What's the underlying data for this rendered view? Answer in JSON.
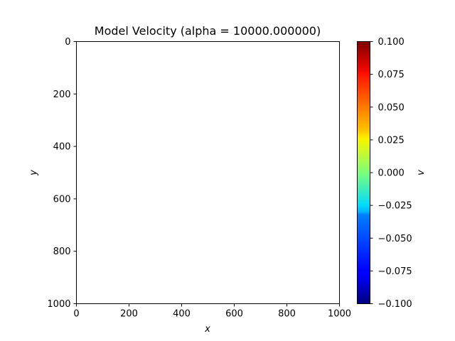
{
  "chart_data": {
    "type": "heatmap",
    "title": "Model Velocity (alpha = 10000.000000)",
    "xlabel": "x",
    "ylabel": "y",
    "xlim": [
      0,
      1000
    ],
    "ylim": [
      1000,
      0
    ],
    "xticks": [
      0,
      200,
      400,
      600,
      800,
      1000
    ],
    "yticks": [
      0,
      200,
      400,
      600,
      800,
      1000
    ],
    "xtick_labels": [
      "0",
      "200",
      "400",
      "600",
      "800",
      "1000"
    ],
    "ytick_labels": [
      "0",
      "200",
      "400",
      "600",
      "800",
      "1000"
    ],
    "y_axis_inverted": true,
    "grid": false,
    "field_values": "blank",
    "colorbar": {
      "label": "v",
      "colormap": "jet",
      "vmin": -0.1,
      "vmax": 0.1,
      "ticks": [
        0.1,
        0.075,
        0.05,
        0.025,
        0.0,
        -0.025,
        -0.05,
        -0.075,
        -0.1
      ],
      "tick_labels": [
        "0.100",
        "0.075",
        "0.050",
        "0.025",
        "0.000",
        "−0.025",
        "−0.050",
        "−0.075",
        "−0.100"
      ]
    }
  }
}
